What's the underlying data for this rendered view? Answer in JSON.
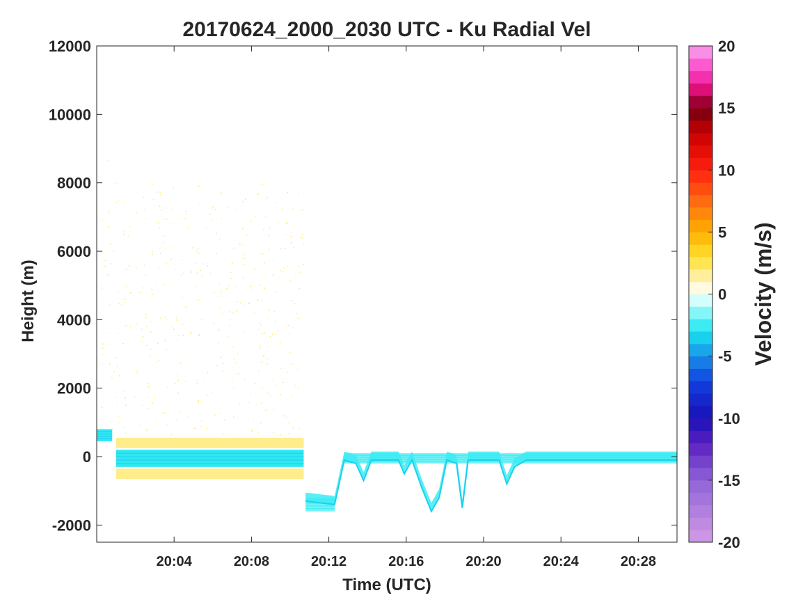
{
  "chart_data": {
    "type": "heatmap",
    "title": "20170624_2000_2030 UTC - Ku Radial Vel",
    "xlabel": "Time (UTC)",
    "ylabel": "Height (m)",
    "x_range_minutes": [
      0,
      30
    ],
    "xticks": [
      {
        "minute": 4,
        "label": "20:04"
      },
      {
        "minute": 8,
        "label": "20:08"
      },
      {
        "minute": 12,
        "label": "20:12"
      },
      {
        "minute": 16,
        "label": "20:16"
      },
      {
        "minute": 20,
        "label": "20:20"
      },
      {
        "minute": 24,
        "label": "20:24"
      },
      {
        "minute": 28,
        "label": "20:28"
      }
    ],
    "ylim": [
      -2500,
      12000
    ],
    "yticks": [
      -2000,
      0,
      2000,
      4000,
      6000,
      8000,
      10000,
      12000
    ],
    "colorbar": {
      "label": "Velocity (m/s)",
      "range": [
        -20,
        20
      ],
      "ticks": [
        -20,
        -15,
        -10,
        -5,
        0,
        5,
        10,
        15,
        20
      ],
      "stops": [
        {
          "v": -20,
          "color": "#d39be6"
        },
        {
          "v": -15,
          "color": "#8f63d8"
        },
        {
          "v": -12,
          "color": "#5a20c0"
        },
        {
          "v": -10,
          "color": "#1a10b8"
        },
        {
          "v": -7,
          "color": "#1040e0"
        },
        {
          "v": -5,
          "color": "#1a90e8"
        },
        {
          "v": -3,
          "color": "#18e6f0"
        },
        {
          "v": -1,
          "color": "#a8fbfb"
        },
        {
          "v": 0,
          "color": "#ffffff"
        },
        {
          "v": 1,
          "color": "#fff4c0"
        },
        {
          "v": 3,
          "color": "#ffe030"
        },
        {
          "v": 5,
          "color": "#ffb000"
        },
        {
          "v": 7,
          "color": "#ff7a10"
        },
        {
          "v": 10,
          "color": "#ff2010"
        },
        {
          "v": 13,
          "color": "#c80000"
        },
        {
          "v": 15,
          "color": "#6e0010"
        },
        {
          "v": 16,
          "color": "#d0005a"
        },
        {
          "v": 18,
          "color": "#ff40c8"
        },
        {
          "v": 20,
          "color": "#f5a8ee"
        }
      ]
    },
    "features": [
      {
        "name": "near-surface downward velocity band",
        "t_start": 1.0,
        "t_end": 10.7,
        "height_low": -300,
        "height_high": 200,
        "velocity": -3
      },
      {
        "name": "sparse low-level upward returns",
        "t_start": 1.0,
        "t_end": 10.7,
        "height_low": -600,
        "height_high": 550,
        "velocity": 2
      },
      {
        "name": "elevated band",
        "t_start": 0.0,
        "t_end": 0.8,
        "height_low": 450,
        "height_high": 800,
        "velocity": -3
      },
      {
        "name": "descending segment",
        "t_start": 10.8,
        "t_end": 12.3,
        "height_low": -1600,
        "height_high": -1200,
        "velocity": -2
      },
      {
        "name": "near-surface band",
        "t_start": 12.8,
        "t_end": 30.0,
        "height_low": -200,
        "height_high": 100,
        "velocity": -2
      }
    ],
    "profile_trace": [
      {
        "t": 10.8,
        "h": -1300
      },
      {
        "t": 12.3,
        "h": -1400
      },
      {
        "t": 12.8,
        "h": -100
      },
      {
        "t": 13.4,
        "h": -200
      },
      {
        "t": 13.8,
        "h": -700
      },
      {
        "t": 14.2,
        "h": -100
      },
      {
        "t": 15.6,
        "h": -100
      },
      {
        "t": 15.9,
        "h": -500
      },
      {
        "t": 16.3,
        "h": -100
      },
      {
        "t": 16.8,
        "h": -900
      },
      {
        "t": 17.3,
        "h": -1600
      },
      {
        "t": 17.7,
        "h": -1200
      },
      {
        "t": 18.1,
        "h": -100
      },
      {
        "t": 18.6,
        "h": -200
      },
      {
        "t": 18.9,
        "h": -1500
      },
      {
        "t": 19.2,
        "h": -100
      },
      {
        "t": 20.8,
        "h": -100
      },
      {
        "t": 21.2,
        "h": -800
      },
      {
        "t": 21.6,
        "h": -300
      },
      {
        "t": 22.2,
        "h": -100
      },
      {
        "t": 30.0,
        "h": -100
      }
    ]
  }
}
